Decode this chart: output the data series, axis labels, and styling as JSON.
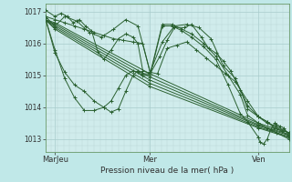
{
  "background_color": "#c0e8e8",
  "plot_bg_color": "#d0ecec",
  "grid_color_major": "#a8cccc",
  "grid_color_minor": "#b8d8d8",
  "line_color": "#2a6030",
  "marker_color": "#2a6030",
  "xlabel": "Pression niveau de la mer( hPa )",
  "xtick_labels": [
    "MarJeu",
    "Mer",
    "Ven"
  ],
  "xtick_positions": [
    0.04,
    0.43,
    0.875
  ],
  "ylim": [
    1012.6,
    1017.25
  ],
  "ytick_values": [
    1013,
    1014,
    1015,
    1016,
    1017
  ],
  "series": [
    {
      "x": [
        0.0,
        0.04,
        0.43,
        0.875,
        1.0
      ],
      "y": [
        1016.75,
        1016.65,
        1015.05,
        1013.5,
        1013.2
      ]
    },
    {
      "x": [
        0.0,
        0.04,
        0.43,
        0.875,
        1.0
      ],
      "y": [
        1016.75,
        1016.6,
        1014.95,
        1013.45,
        1013.15
      ]
    },
    {
      "x": [
        0.0,
        0.04,
        0.43,
        0.875,
        1.0
      ],
      "y": [
        1016.75,
        1016.55,
        1014.85,
        1013.42,
        1013.12
      ]
    },
    {
      "x": [
        0.0,
        0.04,
        0.43,
        0.875,
        1.0
      ],
      "y": [
        1016.75,
        1016.5,
        1014.75,
        1013.38,
        1013.08
      ]
    },
    {
      "x": [
        0.0,
        0.04,
        0.43,
        0.875,
        1.0
      ],
      "y": [
        1016.75,
        1016.45,
        1014.65,
        1013.35,
        1013.05
      ]
    },
    {
      "x": [
        0.0,
        0.04,
        0.08,
        0.13,
        0.18,
        0.23,
        0.28,
        0.33,
        0.38,
        0.43,
        0.48,
        0.53,
        0.58,
        0.63,
        0.68,
        0.73,
        0.78,
        0.83,
        0.875,
        0.91,
        0.95,
        1.0
      ],
      "y": [
        1016.85,
        1016.55,
        1016.85,
        1016.7,
        1016.35,
        1016.2,
        1016.45,
        1016.75,
        1016.55,
        1015.1,
        1016.05,
        1016.55,
        1016.6,
        1016.5,
        1016.15,
        1015.3,
        1014.9,
        1014.05,
        1013.7,
        1013.5,
        1013.4,
        1013.2
      ]
    },
    {
      "x": [
        0.0,
        0.04,
        0.08,
        0.12,
        0.16,
        0.2,
        0.24,
        0.28,
        0.32,
        0.36,
        0.4,
        0.43,
        0.46,
        0.5,
        0.54,
        0.58,
        0.62,
        0.66,
        0.7,
        0.74,
        0.78,
        0.83,
        0.875,
        0.91,
        0.95,
        1.0
      ],
      "y": [
        1016.85,
        1016.75,
        1016.65,
        1016.55,
        1016.45,
        1016.35,
        1016.25,
        1016.15,
        1016.1,
        1016.05,
        1016.0,
        1015.1,
        1015.05,
        1015.85,
        1015.95,
        1016.05,
        1015.8,
        1015.55,
        1015.3,
        1015.05,
        1014.8,
        1014.2,
        1013.7,
        1013.55,
        1013.35,
        1013.2
      ]
    },
    {
      "x": [
        0.0,
        0.04,
        0.08,
        0.12,
        0.16,
        0.2,
        0.24,
        0.27,
        0.3,
        0.33,
        0.36,
        0.38,
        0.4,
        0.43,
        0.48,
        0.52,
        0.56,
        0.6,
        0.65,
        0.7,
        0.75,
        0.8,
        0.83,
        0.875,
        0.91,
        0.95,
        1.0
      ],
      "y": [
        1016.8,
        1015.7,
        1015.1,
        1014.7,
        1014.5,
        1014.2,
        1014.0,
        1013.85,
        1013.95,
        1014.5,
        1015.0,
        1015.15,
        1015.05,
        1015.05,
        1016.6,
        1016.6,
        1016.45,
        1016.3,
        1016.0,
        1015.6,
        1015.0,
        1014.4,
        1013.75,
        1013.5,
        1013.35,
        1013.2,
        1013.0
      ]
    },
    {
      "x": [
        0.0,
        0.04,
        0.08,
        0.12,
        0.16,
        0.2,
        0.24,
        0.27,
        0.3,
        0.33,
        0.36,
        0.38,
        0.4,
        0.43,
        0.48,
        0.52,
        0.56,
        0.6,
        0.65,
        0.7,
        0.75,
        0.8,
        0.83,
        0.875,
        0.875,
        0.88,
        0.895,
        0.91,
        0.925,
        0.94,
        0.95,
        0.965,
        0.98,
        1.0
      ],
      "y": [
        1016.8,
        1015.8,
        1014.9,
        1014.3,
        1013.9,
        1013.9,
        1014.0,
        1014.2,
        1014.6,
        1015.0,
        1015.15,
        1015.1,
        1015.0,
        1015.0,
        1016.55,
        1016.55,
        1016.4,
        1016.2,
        1015.9,
        1015.5,
        1014.7,
        1013.8,
        1013.55,
        1013.05,
        1013.05,
        1012.9,
        1012.85,
        1013.0,
        1013.3,
        1013.5,
        1013.45,
        1013.4,
        1013.35,
        1013.1
      ]
    },
    {
      "x": [
        0.0,
        0.04,
        0.065,
        0.09,
        0.115,
        0.14,
        0.165,
        0.19,
        0.215,
        0.24,
        0.27,
        0.3,
        0.33,
        0.36,
        0.38,
        0.4,
        0.43,
        0.47,
        0.5,
        0.53,
        0.57,
        0.6,
        0.64,
        0.67,
        0.7,
        0.73,
        0.76,
        0.8,
        0.83,
        0.875,
        0.91,
        0.94,
        0.97,
        1.0
      ],
      "y": [
        1017.05,
        1016.85,
        1016.95,
        1016.85,
        1016.65,
        1016.75,
        1016.55,
        1016.4,
        1015.75,
        1015.5,
        1015.8,
        1016.15,
        1016.3,
        1016.2,
        1016.0,
        1015.15,
        1015.05,
        1015.6,
        1016.1,
        1016.5,
        1016.5,
        1016.6,
        1016.2,
        1015.85,
        1015.7,
        1015.45,
        1015.15,
        1014.55,
        1013.95,
        1013.7,
        1013.55,
        1013.35,
        1013.25,
        1013.1
      ]
    }
  ]
}
